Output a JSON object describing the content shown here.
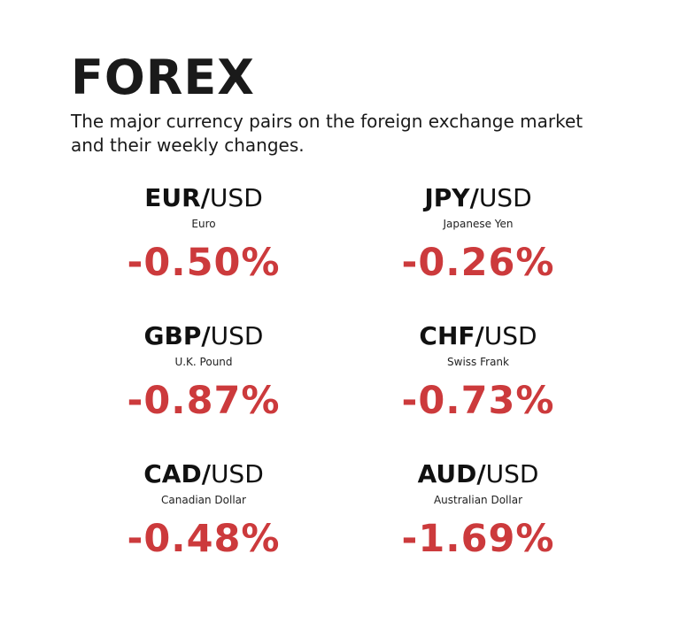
{
  "header": {
    "title": "FOREX",
    "subtitle": "The major currency pairs on the foreign exchange market and their weekly changes."
  },
  "colors": {
    "text": "#1a1a1a",
    "negative": "#cc3a3c",
    "background": "#ffffff"
  },
  "pairs": [
    {
      "base": "EUR",
      "separator": "/",
      "quote": "USD",
      "name": "Euro",
      "change": "-0.50%"
    },
    {
      "base": "JPY",
      "separator": "/",
      "quote": "USD",
      "name": "Japanese Yen",
      "change": "-0.26%"
    },
    {
      "base": "GBP",
      "separator": "/",
      "quote": "USD",
      "name": "U.K. Pound",
      "change": "-0.87%"
    },
    {
      "base": "CHF",
      "separator": "/",
      "quote": "USD",
      "name": "Swiss Frank",
      "change": "-0.73%"
    },
    {
      "base": "CAD",
      "separator": "/",
      "quote": "USD",
      "name": "Canadian Dollar",
      "change": "-0.48%"
    },
    {
      "base": "AUD",
      "separator": "/",
      "quote": "USD",
      "name": "Australian Dollar",
      "change": "-1.69%"
    }
  ]
}
